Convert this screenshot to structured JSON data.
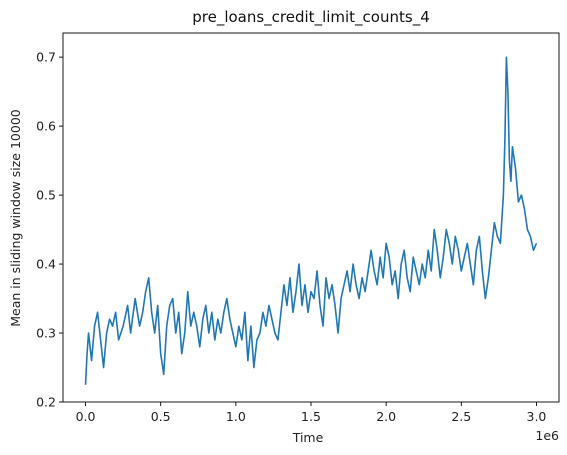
{
  "chart_data": {
    "type": "line",
    "title": "pre_loans_credit_limit_counts_4",
    "xlabel": "Time",
    "ylabel": "Mean in sliding window size 10000",
    "x_offset_label": "1e6",
    "xlim": [
      -0.15,
      3.15
    ],
    "ylim": [
      0.2,
      0.735
    ],
    "x_ticks": [
      0.0,
      0.5,
      1.0,
      1.5,
      2.0,
      2.5,
      3.0
    ],
    "x_tick_labels": [
      "0.0",
      "0.5",
      "1.0",
      "1.5",
      "2.0",
      "2.5",
      "3.0"
    ],
    "y_ticks": [
      0.2,
      0.3,
      0.4,
      0.5,
      0.6,
      0.7
    ],
    "y_tick_labels": [
      "0.2",
      "0.3",
      "0.4",
      "0.5",
      "0.6",
      "0.7"
    ],
    "grid": false,
    "line_color": "#1f77b4",
    "series": [
      {
        "x": [
          0.0,
          0.01,
          0.02,
          0.04,
          0.06,
          0.08,
          0.1,
          0.12,
          0.14,
          0.16,
          0.18,
          0.2,
          0.22,
          0.25,
          0.28,
          0.3,
          0.33,
          0.36,
          0.38,
          0.4,
          0.42,
          0.44,
          0.46,
          0.48,
          0.5,
          0.52,
          0.54,
          0.56,
          0.58,
          0.6,
          0.62,
          0.64,
          0.66,
          0.68,
          0.7,
          0.72,
          0.74,
          0.76,
          0.78,
          0.8,
          0.82,
          0.84,
          0.86,
          0.88,
          0.9,
          0.92,
          0.94,
          0.96,
          0.98,
          1.0,
          1.02,
          1.04,
          1.06,
          1.08,
          1.1,
          1.12,
          1.14,
          1.16,
          1.18,
          1.2,
          1.22,
          1.24,
          1.26,
          1.28,
          1.3,
          1.32,
          1.34,
          1.36,
          1.38,
          1.4,
          1.42,
          1.44,
          1.46,
          1.48,
          1.5,
          1.52,
          1.54,
          1.56,
          1.58,
          1.6,
          1.62,
          1.64,
          1.66,
          1.68,
          1.7,
          1.72,
          1.74,
          1.76,
          1.78,
          1.8,
          1.82,
          1.84,
          1.86,
          1.88,
          1.9,
          1.92,
          1.94,
          1.96,
          1.98,
          2.0,
          2.02,
          2.04,
          2.06,
          2.08,
          2.1,
          2.12,
          2.14,
          2.16,
          2.18,
          2.2,
          2.22,
          2.24,
          2.26,
          2.28,
          2.3,
          2.32,
          2.34,
          2.36,
          2.38,
          2.4,
          2.42,
          2.44,
          2.46,
          2.48,
          2.5,
          2.52,
          2.54,
          2.56,
          2.58,
          2.6,
          2.62,
          2.64,
          2.66,
          2.68,
          2.7,
          2.72,
          2.74,
          2.76,
          2.78,
          2.79,
          2.8,
          2.81,
          2.82,
          2.83,
          2.84,
          2.86,
          2.88,
          2.9,
          2.92,
          2.94,
          2.96,
          2.98,
          3.0
        ],
        "y": [
          0.225,
          0.27,
          0.3,
          0.26,
          0.31,
          0.33,
          0.29,
          0.25,
          0.3,
          0.32,
          0.31,
          0.33,
          0.29,
          0.31,
          0.34,
          0.3,
          0.35,
          0.31,
          0.33,
          0.36,
          0.38,
          0.33,
          0.3,
          0.34,
          0.27,
          0.24,
          0.31,
          0.34,
          0.35,
          0.3,
          0.33,
          0.27,
          0.3,
          0.36,
          0.31,
          0.33,
          0.31,
          0.28,
          0.32,
          0.34,
          0.3,
          0.33,
          0.29,
          0.32,
          0.3,
          0.33,
          0.35,
          0.32,
          0.3,
          0.28,
          0.31,
          0.29,
          0.33,
          0.26,
          0.31,
          0.25,
          0.29,
          0.3,
          0.33,
          0.31,
          0.34,
          0.32,
          0.3,
          0.29,
          0.33,
          0.37,
          0.34,
          0.38,
          0.33,
          0.36,
          0.4,
          0.34,
          0.37,
          0.33,
          0.36,
          0.35,
          0.39,
          0.34,
          0.31,
          0.38,
          0.35,
          0.37,
          0.34,
          0.3,
          0.35,
          0.37,
          0.39,
          0.36,
          0.4,
          0.37,
          0.35,
          0.38,
          0.36,
          0.39,
          0.42,
          0.39,
          0.37,
          0.41,
          0.38,
          0.43,
          0.41,
          0.37,
          0.39,
          0.35,
          0.4,
          0.42,
          0.38,
          0.36,
          0.41,
          0.39,
          0.37,
          0.4,
          0.38,
          0.42,
          0.39,
          0.45,
          0.42,
          0.38,
          0.41,
          0.45,
          0.43,
          0.4,
          0.44,
          0.42,
          0.39,
          0.41,
          0.43,
          0.4,
          0.37,
          0.42,
          0.44,
          0.39,
          0.35,
          0.38,
          0.42,
          0.46,
          0.44,
          0.43,
          0.5,
          0.58,
          0.7,
          0.65,
          0.55,
          0.52,
          0.57,
          0.54,
          0.49,
          0.5,
          0.48,
          0.45,
          0.44,
          0.42,
          0.43
        ]
      }
    ]
  }
}
